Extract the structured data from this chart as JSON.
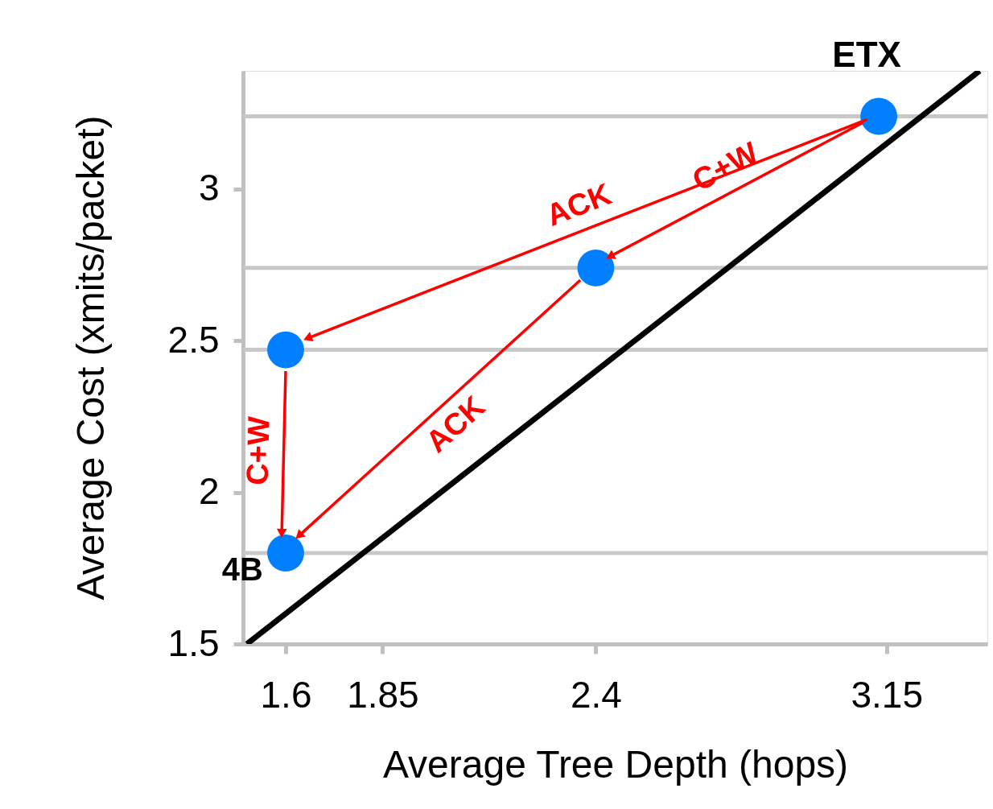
{
  "chart_data": {
    "type": "scatter",
    "xlabel": "Average Tree Depth (hops)",
    "ylabel": "Average Cost (xmits/packet)",
    "xlim": [
      1.49,
      3.41
    ],
    "ylim": [
      1.5,
      3.39
    ],
    "xticks": [
      1.6,
      1.85,
      2.4,
      3.15
    ],
    "yticks": [
      1.5,
      2,
      2.5,
      3
    ],
    "grid": false,
    "series": [
      {
        "type": "line",
        "color": "#000000",
        "x": [
          1.5,
          3.39
        ],
        "values": [
          1.5,
          3.39
        ],
        "marker": "none"
      },
      {
        "color": "#0080ff",
        "x": [
          3.13,
          2.4,
          1.6,
          1.6
        ],
        "values": [
          3.24,
          2.74,
          2.47,
          1.8
        ],
        "marker": "circle"
      },
      {
        "type": "line",
        "name": "ACK",
        "color": "#ff0000",
        "x": [
          3.1,
          1.66
        ],
        "values": [
          3.23,
          2.51
        ],
        "marker": "triangle"
      },
      {
        "type": "line",
        "name": "C+W",
        "color": "#ff0000",
        "x": [
          3.09,
          2.44
        ],
        "values": [
          3.22,
          2.78
        ],
        "marker": "triangle"
      },
      {
        "type": "line",
        "name": "ACK",
        "color": "#ff0000",
        "x": [
          2.36,
          1.637
        ],
        "values": [
          2.7,
          1.86
        ],
        "marker": "triangle"
      },
      {
        "type": "line",
        "name": "C+W",
        "color": "#ff0000",
        "x": [
          1.6,
          1.59
        ],
        "values": [
          2.4,
          1.87
        ],
        "marker": "triangle"
      }
    ],
    "ref_lines": [
      {
        "axis": "y",
        "value": 3.24,
        "color": "#c8c8c8"
      },
      {
        "axis": "y",
        "value": 2.74,
        "color": "#c8c8c8"
      },
      {
        "axis": "y",
        "value": 2.47,
        "color": "#c8c8c8"
      },
      {
        "axis": "y",
        "value": 1.8,
        "color": "#c8c8c8"
      }
    ],
    "annotations": [
      {
        "text": "ETX",
        "x": 3.13,
        "y": 3.24
      },
      {
        "text": "4B",
        "x": 1.6,
        "y": 1.8
      }
    ]
  }
}
